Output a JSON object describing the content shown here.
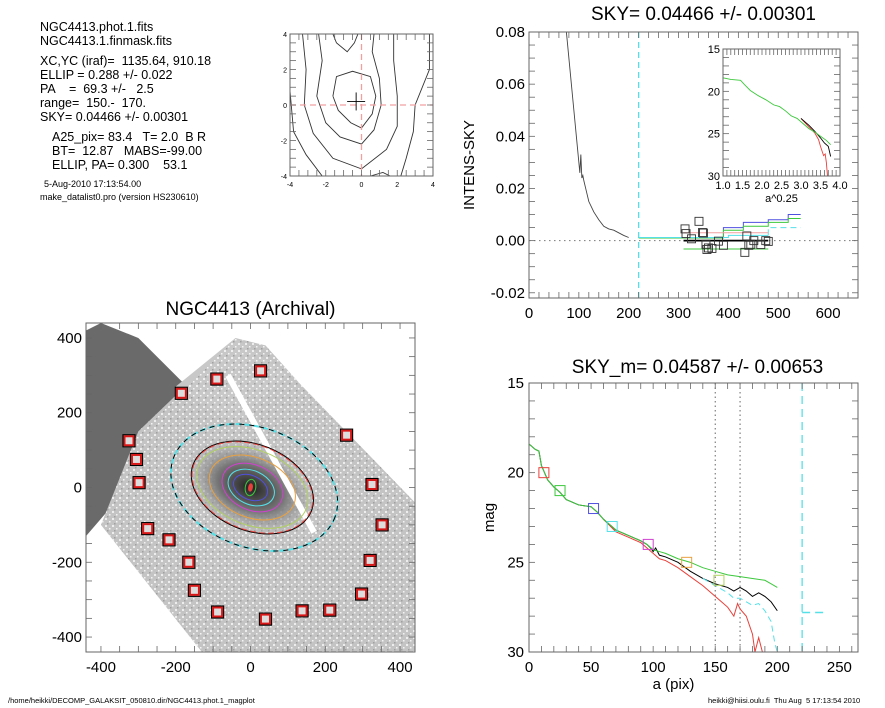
{
  "info_panel": {
    "file1": "NGC4413.phot.1.fits",
    "file2": "NGC4413.1.finmask.fits",
    "center": "XC,YC (iraf)=  1135.64, 910.18",
    "ellip": "ELLIP = 0.288 +/- 0.022",
    "pa": "PA    =  69.3 +/-   2.5",
    "range": "range=  150.-  170.",
    "sky": "SKY= 0.04466 +/- 0.00301",
    "a25": "A25_pix= 83.4   T= 2.0  B R",
    "bt": "BT=  12.87   MABS=-99.00",
    "ellip_pa": "ELLIP, PA= 0.300    53.1",
    "date": "5-Aug-2010 17:13:54.00",
    "program": "make_datalist0.pro (version HS230610)"
  },
  "footer": {
    "path": "/home/heikki/DECOMP_GALAKSIT_050810.dir/NGC4413.phot.1_magplot",
    "user_time": "heikki@hiisi.oulu.fi  Thu Aug  5 17:13:54 2010"
  },
  "colors": {
    "cyan": "#55e0e8",
    "red": "#e8403a",
    "green": "#3cc83c",
    "blue": "#5050e0",
    "pink": "#f0a0a0",
    "magenta": "#d040d0",
    "orange": "#e8a040",
    "yellowgreen": "#b0d060",
    "gray": "#888888",
    "marker_red": "#d81818"
  },
  "chart_data": [
    {
      "id": "contour",
      "type": "contour",
      "title": "",
      "xlabel": "",
      "ylabel": "",
      "xlim": [
        -4,
        4
      ],
      "ylim": [
        -4,
        4
      ],
      "xticks": [
        "-4",
        "-2",
        "0",
        "2",
        "4"
      ],
      "yticks": [
        "-4",
        "-2",
        "0",
        "2",
        "4"
      ],
      "crosshair": [
        0,
        0
      ],
      "center_mark": [
        -0.3,
        0.2
      ],
      "contours": [
        [
          [
            -1.6,
            0.5
          ],
          [
            -1.4,
            1.6
          ],
          [
            -0.5,
            1.9
          ],
          [
            0.5,
            1.6
          ],
          [
            0.8,
            0.5
          ],
          [
            0.6,
            -0.5
          ],
          [
            0,
            -1.3
          ],
          [
            -0.6,
            -1
          ],
          [
            -1.3,
            -0.3
          ],
          [
            -1.6,
            0.5
          ]
        ],
        [
          [
            -2.4,
            4
          ],
          [
            -2.2,
            2.5
          ],
          [
            -2.5,
            0.5
          ],
          [
            -2,
            -1
          ],
          [
            -1.2,
            -1.8
          ],
          [
            0,
            -2.2
          ],
          [
            0.7,
            -1.4
          ],
          [
            1.1,
            0
          ],
          [
            1.0,
            1.5
          ],
          [
            0.6,
            3
          ],
          [
            0.7,
            4
          ]
        ],
        [
          [
            -3.3,
            4
          ],
          [
            -3.1,
            2
          ],
          [
            -3.2,
            0
          ],
          [
            -2.7,
            -1.6
          ],
          [
            -1.6,
            -3
          ],
          [
            0,
            -3.6
          ],
          [
            1.4,
            -2.5
          ],
          [
            2,
            -1.2
          ],
          [
            2,
            0.5
          ],
          [
            1.8,
            2.5
          ],
          [
            1.8,
            4
          ]
        ],
        [
          [
            -4,
            0.8
          ],
          [
            -3.8,
            -1.5
          ],
          [
            -3.1,
            -2.8
          ],
          [
            -2.2,
            -4
          ]
        ],
        [
          [
            -1.6,
            4
          ],
          [
            -1.4,
            3.5
          ],
          [
            -0.8,
            3
          ],
          [
            -0.4,
            3.5
          ],
          [
            -0.2,
            4
          ]
        ],
        [
          [
            3.8,
            4
          ],
          [
            3.8,
            2
          ],
          [
            3.0,
            0
          ],
          [
            2.9,
            -1.5
          ],
          [
            2.5,
            -3
          ],
          [
            2.2,
            -4
          ]
        ],
        [
          [
            0.5,
            -4
          ],
          [
            1.2,
            -3.8
          ],
          [
            1.6,
            -4
          ]
        ]
      ]
    },
    {
      "id": "sky",
      "type": "line",
      "title": "SKY= 0.04466 +/- 0.00301",
      "xlabel": "",
      "ylabel": "INTENS-SKY",
      "xlim": [
        0,
        660
      ],
      "ylim": [
        -0.022,
        0.08
      ],
      "xticks": [
        0,
        100,
        200,
        300,
        400,
        500,
        600
      ],
      "yticks": [
        -0.02,
        0.0,
        0.02,
        0.04,
        0.06,
        0.08
      ],
      "ytick_labels": [
        "-0.02",
        "0.00",
        "0.02",
        "0.04",
        "0.06",
        "0.08"
      ],
      "profile": {
        "x": [
          75,
          80,
          85,
          90,
          95,
          100,
          102,
          104,
          106,
          108,
          110,
          115,
          120,
          125,
          130,
          140,
          150,
          160,
          170,
          180,
          190,
          200
        ],
        "y": [
          0.08,
          0.07,
          0.06,
          0.05,
          0.04,
          0.03,
          0.026,
          0.033,
          0.024,
          0.025,
          0.023,
          0.019,
          0.015,
          0.013,
          0.011,
          0.008,
          0.0055,
          0.0045,
          0.004,
          0.003,
          0.002,
          0.0012
        ]
      },
      "sky_radius_marker": 220,
      "steps": [
        {
          "color": "blue",
          "x": [
            220,
            390,
            390,
            430,
            430,
            480,
            480,
            520,
            520,
            545
          ],
          "y": [
            0.0012,
            0.0012,
            0.005,
            0.005,
            0.007,
            0.007,
            0.008,
            0.008,
            0.01,
            0.01
          ]
        },
        {
          "color": "green",
          "x": [
            220,
            390,
            390,
            430,
            430,
            480,
            480,
            520,
            520,
            545
          ],
          "y": [
            0.001,
            0.001,
            0.004,
            0.004,
            0.0055,
            0.0055,
            0.007,
            0.007,
            0.0085,
            0.0085
          ]
        },
        {
          "color": "cyan",
          "x": [
            220,
            400,
            400,
            480,
            480,
            545
          ],
          "y": [
            0.0012,
            0.0012,
            0.002,
            0.002,
            0.005,
            0.005
          ],
          "dashed_tail": true
        },
        {
          "color": "pink",
          "x": [
            310,
            480
          ],
          "y": [
            0.003,
            0.003
          ]
        },
        {
          "color": "green",
          "x": [
            310,
            480
          ],
          "y": [
            -0.0032,
            -0.0032
          ]
        },
        {
          "color": "black",
          "x": [
            310,
            480
          ],
          "y": [
            0.0,
            0.0
          ],
          "thick": true
        }
      ],
      "points": {
        "x": [
          313,
          315,
          326,
          341,
          348,
          350,
          355,
          357,
          360,
          367,
          380,
          390,
          433,
          437,
          441,
          445,
          451,
          465,
          475,
          480
        ],
        "y": [
          0.0045,
          0.0027,
          0.0007,
          0.0074,
          0.0031,
          0.0029,
          -0.0014,
          -0.0034,
          -0.0028,
          -0.003,
          -0.0002,
          -0.0018,
          -0.0045,
          0.0018,
          -0.0018,
          -0.0014,
          0.0,
          -0.0015,
          0.0,
          -0.0003
        ]
      },
      "inset": {
        "xlabel": "a^0.25",
        "xlim": [
          1.0,
          4.0
        ],
        "ylim": [
          30,
          15
        ],
        "xticks": [
          1.0,
          1.5,
          2.0,
          2.5,
          3.0,
          3.5,
          4.0
        ],
        "xtick_labels": [
          "1.0",
          "1.5",
          "2.0",
          "2.5",
          "3.0",
          "3.5",
          "4.0"
        ],
        "yticks": [
          15,
          20,
          25,
          30
        ],
        "series": [
          {
            "color": "red",
            "x": [
              3.0,
              3.2,
              3.35,
              3.45,
              3.5,
              3.55,
              3.58,
              3.62,
              3.65,
              3.67,
              3.68
            ],
            "y": [
              23.2,
              24.2,
              24.9,
              25.7,
              26.5,
              27.2,
              27.6,
              27.4,
              28.4,
              29.5,
              30.0
            ]
          },
          {
            "color": "black",
            "x": [
              3.0,
              3.2,
              3.35,
              3.5,
              3.6,
              3.7,
              3.76
            ],
            "y": [
              23.2,
              24.0,
              24.7,
              25.5,
              26.1,
              26.5,
              27.7
            ]
          },
          {
            "color": "green",
            "x": [
              1.0,
              1.2,
              1.45,
              1.55,
              1.7,
              1.9,
              2.1,
              2.3,
              2.45,
              2.6,
              2.75,
              2.9,
              3.05,
              3.2,
              3.35,
              3.5,
              3.65,
              3.76
            ],
            "y": [
              18.4,
              18.6,
              18.7,
              19.2,
              19.9,
              20.5,
              21.0,
              21.6,
              21.8,
              22.3,
              22.9,
              23.2,
              23.8,
              24.4,
              24.8,
              25.3,
              25.8,
              26.3
            ]
          }
        ]
      }
    },
    {
      "id": "mag",
      "type": "line",
      "title": "SKY_m=  0.04587 +/- 0.00653",
      "xlabel": "a (pix)",
      "ylabel": "mag",
      "xlim": [
        0,
        265
      ],
      "ylim": [
        30,
        15
      ],
      "xticks": [
        0,
        50,
        100,
        150,
        200,
        250
      ],
      "yticks": [
        15,
        20,
        25,
        30
      ],
      "vlines_dotted": [
        150,
        170
      ],
      "vline_dashed": 220,
      "hline_dashed": {
        "x": [
          220,
          240
        ],
        "y": 27.8
      },
      "series": [
        {
          "color": "black",
          "name": "profile",
          "x": [
            0,
            5,
            8,
            10,
            15,
            20,
            25,
            30,
            40,
            50,
            55,
            60,
            65,
            70,
            80,
            90,
            95,
            98,
            100,
            102,
            105,
            110,
            120,
            130,
            140,
            150,
            160,
            165,
            170,
            175,
            180,
            185,
            190,
            195,
            200
          ],
          "y": [
            18.4,
            18.7,
            18.8,
            19.6,
            20.4,
            20.8,
            21.1,
            21.5,
            21.8,
            21.9,
            22.2,
            22.6,
            22.9,
            23.2,
            23.5,
            23.8,
            24.0,
            24.2,
            24.4,
            24.2,
            24.6,
            24.7,
            25.0,
            25.5,
            25.9,
            26.2,
            26.4,
            26.6,
            26.4,
            26.6,
            26.9,
            26.7,
            26.9,
            27.2,
            27.7
          ]
        },
        {
          "color": "green",
          "name": "plus",
          "x": [
            0,
            5,
            8,
            10,
            15,
            20,
            25,
            30,
            40,
            50,
            55,
            60,
            65,
            70,
            80,
            90,
            95,
            100,
            105,
            110,
            120,
            130,
            140,
            150,
            160,
            170,
            180,
            190,
            195,
            200
          ],
          "y": [
            18.4,
            18.7,
            18.8,
            19.6,
            20.4,
            20.8,
            21.1,
            21.5,
            21.8,
            21.9,
            22.2,
            22.6,
            22.9,
            23.2,
            23.5,
            23.8,
            24.0,
            24.3,
            24.4,
            24.5,
            24.8,
            25.0,
            25.3,
            25.5,
            25.7,
            25.8,
            25.9,
            26.0,
            26.2,
            26.4
          ]
        },
        {
          "color": "red",
          "name": "minus",
          "x": [
            60,
            70,
            80,
            90,
            100,
            105,
            110,
            120,
            130,
            140,
            150,
            155,
            160,
            165,
            168,
            170,
            175,
            180,
            182,
            185,
            188
          ],
          "y": [
            22.6,
            23.3,
            23.6,
            23.9,
            24.5,
            24.8,
            24.9,
            25.3,
            25.8,
            26.3,
            26.9,
            27.2,
            27.5,
            28.0,
            27.3,
            27.6,
            28.0,
            29.0,
            30.0,
            29.2,
            30.0
          ]
        },
        {
          "color": "cyan",
          "name": "sky_m",
          "dashed": true,
          "x": [
            140,
            150,
            160,
            165,
            170,
            180,
            185,
            190,
            195,
            198,
            200
          ],
          "y": [
            25.9,
            26.3,
            26.7,
            27.0,
            27.0,
            27.4,
            27.3,
            27.7,
            28.3,
            29.5,
            30.0
          ]
        }
      ],
      "markers": [
        {
          "x": 12,
          "y": 20.0,
          "color": "red"
        },
        {
          "x": 25,
          "y": 21.0,
          "color": "green"
        },
        {
          "x": 52,
          "y": 22.0,
          "color": "blue"
        },
        {
          "x": 67,
          "y": 23.0,
          "color": "cyan"
        },
        {
          "x": 96,
          "y": 24.0,
          "color": "magenta"
        },
        {
          "x": 127,
          "y": 25.0,
          "color": "orange"
        },
        {
          "x": 153,
          "y": 26.0,
          "color": "yellowgreen"
        }
      ]
    },
    {
      "id": "galaxy",
      "type": "image",
      "title": "NGC4413 (Archival)",
      "xlabel": "",
      "ylabel": "",
      "xlim": [
        -440,
        440
      ],
      "ylim": [
        -440,
        440
      ],
      "xticks": [
        -400,
        -200,
        0,
        200,
        400
      ],
      "yticks": [
        -400,
        -200,
        0,
        200,
        400
      ],
      "ellipses": [
        {
          "color": "cyan",
          "a": 230,
          "b": 160,
          "pa_deg": -20,
          "dashed": true,
          "cx": 10,
          "cy": 0
        },
        {
          "color": "black",
          "a": 230,
          "b": 160,
          "pa_deg": -20,
          "dashed": true,
          "cx": 10,
          "cy": 0
        },
        {
          "color": "black",
          "a": 170,
          "b": 115,
          "pa_deg": -22,
          "cx": 5,
          "cy": 0
        },
        {
          "color": "red",
          "a": 168,
          "b": 113,
          "pa_deg": -22,
          "dashed": true,
          "cx": 5,
          "cy": 0
        },
        {
          "color": "yellowgreen",
          "a": 155,
          "b": 100,
          "pa_deg": -22,
          "cx": 5,
          "cy": 0
        },
        {
          "color": "orange",
          "a": 120,
          "b": 80,
          "pa_deg": -22,
          "cx": 5,
          "cy": 0
        },
        {
          "color": "magenta",
          "a": 85,
          "b": 60,
          "pa_deg": -25,
          "cx": 5,
          "cy": 0
        },
        {
          "color": "cyan",
          "a": 65,
          "b": 45,
          "pa_deg": -25,
          "cx": 2,
          "cy": 0
        },
        {
          "color": "blue",
          "a": 48,
          "b": 32,
          "pa_deg": -25,
          "cx": 0,
          "cy": 0
        },
        {
          "color": "green",
          "a": 14,
          "b": 22,
          "pa_deg": -10,
          "cx": 0,
          "cy": 0
        },
        {
          "color": "red",
          "a": 5,
          "b": 10,
          "pa_deg": -10,
          "cx": 0,
          "cy": 0,
          "filled": true
        }
      ],
      "sky_boxes": {
        "x": [
          -325,
          -305,
          -298,
          -185,
          -90,
          27,
          257,
          325,
          352,
          320,
          297,
          212,
          138,
          40,
          -88,
          -150,
          -165,
          -218,
          -275
        ],
        "y": [
          125,
          75,
          13,
          252,
          290,
          312,
          140,
          8,
          -100,
          -195,
          -285,
          -328,
          -330,
          -352,
          -333,
          -275,
          -200,
          -140,
          -110
        ]
      }
    }
  ]
}
